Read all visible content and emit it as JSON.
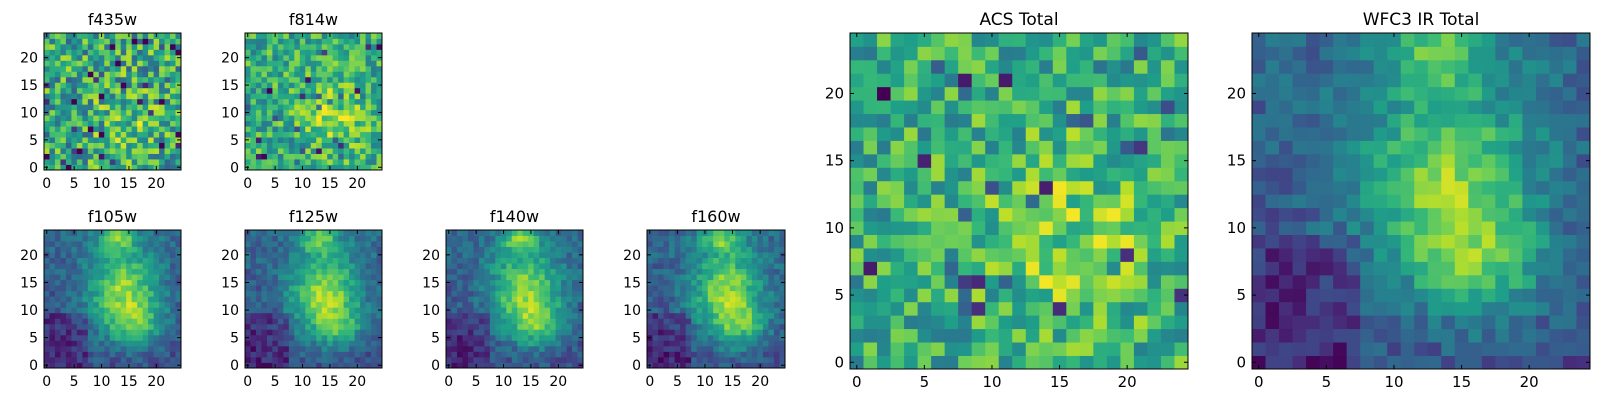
{
  "chart_data": [
    {
      "type": "heatmap",
      "title": "f435w",
      "grid_size": 25,
      "xlim": [
        0,
        24
      ],
      "ylim": [
        0,
        24
      ],
      "xticks": [
        "0",
        "5",
        "10",
        "15",
        "20"
      ],
      "yticks": [
        "0",
        "5",
        "10",
        "15",
        "20"
      ],
      "colormap": "viridis",
      "pattern": "noise"
    },
    {
      "type": "heatmap",
      "title": "f814w",
      "grid_size": 25,
      "xlim": [
        0,
        24
      ],
      "ylim": [
        0,
        24
      ],
      "xticks": [
        "0",
        "5",
        "10",
        "15",
        "20"
      ],
      "yticks": [
        "0",
        "5",
        "10",
        "15",
        "20"
      ],
      "colormap": "viridis",
      "pattern": "noise-bright"
    },
    {
      "type": "heatmap",
      "title": "f105w",
      "grid_size": 25,
      "xlim": [
        0,
        24
      ],
      "ylim": [
        0,
        24
      ],
      "xticks": [
        "0",
        "5",
        "10",
        "15",
        "20"
      ],
      "yticks": [
        "0",
        "5",
        "10",
        "15",
        "20"
      ],
      "colormap": "viridis",
      "pattern": "galaxy"
    },
    {
      "type": "heatmap",
      "title": "f125w",
      "grid_size": 25,
      "xlim": [
        0,
        24
      ],
      "ylim": [
        0,
        24
      ],
      "xticks": [
        "0",
        "5",
        "10",
        "15",
        "20"
      ],
      "yticks": [
        "0",
        "5",
        "10",
        "15",
        "20"
      ],
      "colormap": "viridis",
      "pattern": "galaxy"
    },
    {
      "type": "heatmap",
      "title": "f140w",
      "grid_size": 25,
      "xlim": [
        0,
        24
      ],
      "ylim": [
        0,
        24
      ],
      "xticks": [
        "0",
        "5",
        "10",
        "15",
        "20"
      ],
      "yticks": [
        "0",
        "5",
        "10",
        "15",
        "20"
      ],
      "colormap": "viridis",
      "pattern": "galaxy"
    },
    {
      "type": "heatmap",
      "title": "f160w",
      "grid_size": 25,
      "xlim": [
        0,
        24
      ],
      "ylim": [
        0,
        24
      ],
      "xticks": [
        "0",
        "5",
        "10",
        "15",
        "20"
      ],
      "yticks": [
        "0",
        "5",
        "10",
        "15",
        "20"
      ],
      "colormap": "viridis",
      "pattern": "galaxy"
    },
    {
      "type": "heatmap",
      "title": "ACS Total",
      "grid_size": 25,
      "xlim": [
        0,
        24
      ],
      "ylim": [
        0,
        24
      ],
      "xticks": [
        "0",
        "5",
        "10",
        "15",
        "20"
      ],
      "yticks": [
        "0",
        "5",
        "10",
        "15",
        "20"
      ],
      "colormap": "viridis",
      "pattern": "noise-bright"
    },
    {
      "type": "heatmap",
      "title": "WFC3 IR Total",
      "grid_size": 25,
      "xlim": [
        0,
        24
      ],
      "ylim": [
        0,
        24
      ],
      "xticks": [
        "0",
        "5",
        "10",
        "15",
        "20"
      ],
      "yticks": [
        "0",
        "5",
        "10",
        "15",
        "20"
      ],
      "colormap": "viridis",
      "pattern": "galaxy"
    }
  ]
}
